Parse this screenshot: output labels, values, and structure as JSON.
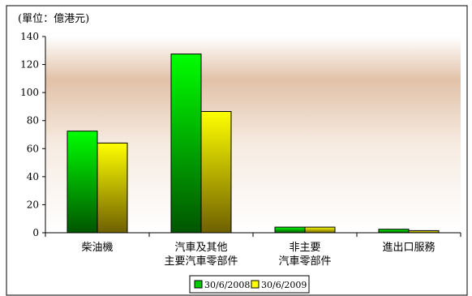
{
  "chart_data": {
    "type": "bar",
    "unit_label": "(單位：億港元)",
    "categories": [
      [
        "柴油機"
      ],
      [
        "汽車及其他",
        "主要汽車零部件"
      ],
      [
        "非主要",
        "汽車零部件"
      ],
      [
        "進出口服務"
      ]
    ],
    "series": [
      {
        "name": "30/6/2008",
        "color": "#00cc00",
        "values": [
          72.5,
          127.5,
          4.0,
          2.5
        ]
      },
      {
        "name": "30/6/2009",
        "color": "#ffff00",
        "values": [
          64.0,
          86.5,
          4.0,
          1.5
        ]
      }
    ],
    "ylim": [
      0,
      140
    ],
    "yticks": [
      0,
      20,
      40,
      60,
      80,
      100,
      120,
      140
    ],
    "legend_position": "bottom-center",
    "grid": false,
    "plot_background": "#e8c9ae"
  }
}
